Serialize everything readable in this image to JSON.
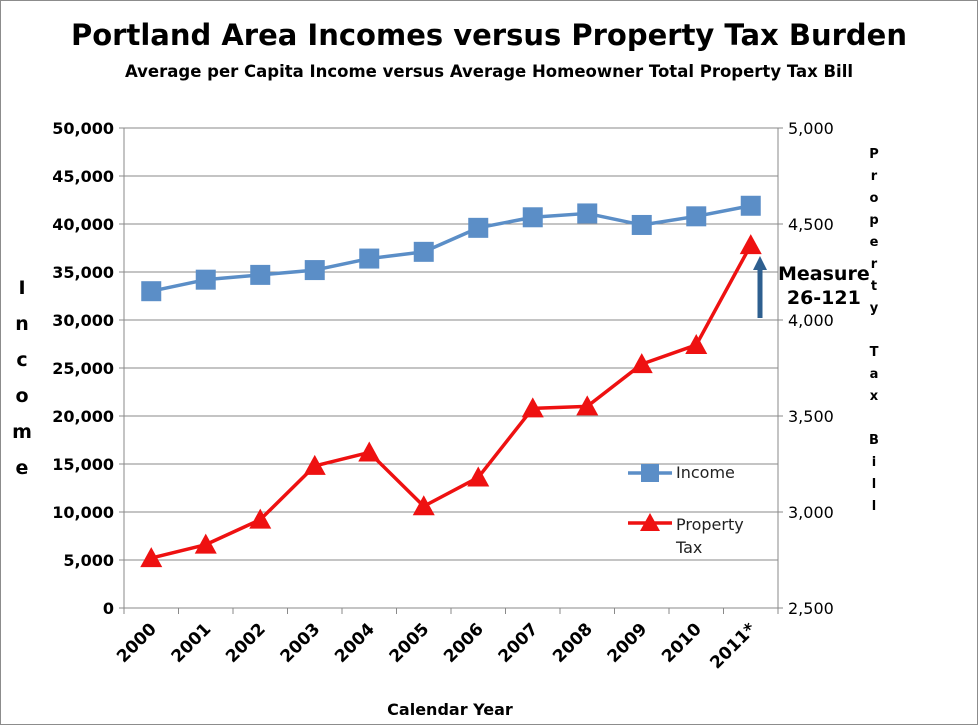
{
  "chart_data": {
    "type": "line",
    "title": "Portland Area Incomes versus Property Tax Burden",
    "subtitle": "Average per Capita Income versus Average Homeowner Total Property Tax Bill",
    "xlabel": "Calendar Year",
    "ylabel": "Income",
    "y2label": "Property Tax Bill",
    "categories": [
      "2000",
      "2001",
      "2002",
      "2003",
      "2004",
      "2005",
      "2006",
      "2007",
      "2008",
      "2009",
      "2010",
      "2011*"
    ],
    "ylim": [
      0,
      50000
    ],
    "y2lim": [
      2500,
      5000
    ],
    "yticks": [
      "0",
      "5,000",
      "10,000",
      "15,000",
      "20,000",
      "25,000",
      "30,000",
      "35,000",
      "40,000",
      "45,000",
      "50,000"
    ],
    "y2ticks": [
      "2,500",
      "3,000",
      "3,500",
      "4,000",
      "4,500",
      "5,000"
    ],
    "grid": true,
    "legend_position": "right",
    "series": [
      {
        "name": "Income",
        "axis": "left",
        "color": "#5b8ec7",
        "marker": "square",
        "values": [
          33000,
          34200,
          34700,
          35200,
          36400,
          37100,
          39600,
          40700,
          41100,
          39900,
          40800,
          41900
        ]
      },
      {
        "name": "Property Tax",
        "axis": "right",
        "color": "#ee1111",
        "marker": "triangle",
        "values": [
          2760,
          2830,
          2960,
          3240,
          3310,
          3030,
          3180,
          3540,
          3550,
          3770,
          3870,
          4390
        ]
      }
    ],
    "annotation": {
      "text_line1": "Measure",
      "text_line2": "26-121",
      "arrow_color": "#2e5f8f"
    }
  },
  "legend": {
    "income_label": "Income",
    "tax_label_line1": "Property",
    "tax_label_line2": "Tax"
  },
  "labels": {
    "left_letters": [
      "I",
      "n",
      "c",
      "o",
      "m",
      "e"
    ],
    "right_letters": [
      "P",
      "r",
      "o",
      "p",
      "e",
      "r",
      "t",
      "y",
      "",
      "T",
      "a",
      "x",
      "",
      "B",
      "i",
      "l",
      "l"
    ]
  }
}
